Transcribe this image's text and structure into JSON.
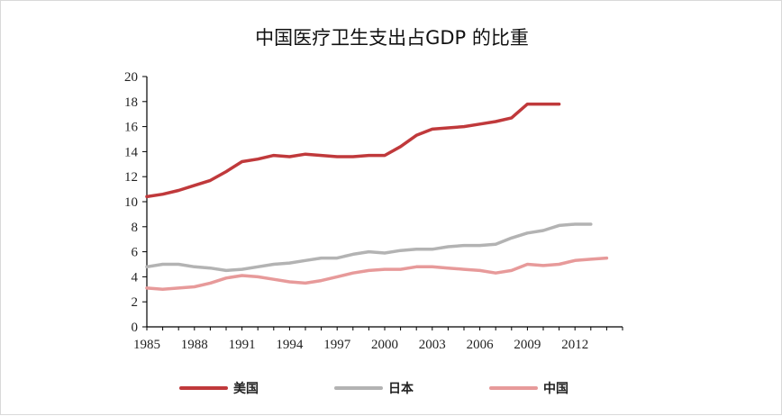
{
  "chart_data": {
    "type": "line",
    "title": "中国医疗卫生支出占GDP 的比重",
    "xlabel": "",
    "ylabel": "",
    "xlim": [
      1985,
      2015
    ],
    "ylim": [
      0,
      20
    ],
    "x_ticks": [
      1985,
      1988,
      1991,
      1994,
      1997,
      2000,
      2003,
      2006,
      2009,
      2012
    ],
    "y_ticks": [
      0,
      2,
      4,
      6,
      8,
      10,
      12,
      14,
      16,
      18,
      20
    ],
    "grid": false,
    "legend_position": "bottom",
    "series": [
      {
        "name": "美国",
        "color": "#c0393b",
        "x": [
          1985,
          1986,
          1987,
          1988,
          1989,
          1990,
          1991,
          1992,
          1993,
          1994,
          1995,
          1996,
          1997,
          1998,
          1999,
          2000,
          2001,
          2002,
          2003,
          2004,
          2005,
          2006,
          2007,
          2008,
          2009,
          2010,
          2011
        ],
        "values": [
          10.4,
          10.6,
          10.9,
          11.3,
          11.7,
          12.4,
          13.2,
          13.4,
          13.7,
          13.6,
          13.8,
          13.7,
          13.6,
          13.6,
          13.7,
          13.7,
          14.4,
          15.3,
          15.8,
          15.9,
          16.0,
          16.2,
          16.4,
          16.7,
          17.8,
          17.8,
          17.8
        ]
      },
      {
        "name": "日本",
        "color": "#b3b3b3",
        "x": [
          1985,
          1986,
          1987,
          1988,
          1989,
          1990,
          1991,
          1992,
          1993,
          1994,
          1995,
          1996,
          1997,
          1998,
          1999,
          2000,
          2001,
          2002,
          2003,
          2004,
          2005,
          2006,
          2007,
          2008,
          2009,
          2010,
          2011,
          2012,
          2013
        ],
        "values": [
          4.8,
          5.0,
          5.0,
          4.8,
          4.7,
          4.5,
          4.6,
          4.8,
          5.0,
          5.1,
          5.3,
          5.5,
          5.5,
          5.8,
          6.0,
          5.9,
          6.1,
          6.2,
          6.2,
          6.4,
          6.5,
          6.5,
          6.6,
          7.1,
          7.5,
          7.7,
          8.1,
          8.2,
          8.2
        ]
      },
      {
        "name": "中国",
        "color": "#e79a9a",
        "x": [
          1985,
          1986,
          1987,
          1988,
          1989,
          1990,
          1991,
          1992,
          1993,
          1994,
          1995,
          1996,
          1997,
          1998,
          1999,
          2000,
          2001,
          2002,
          2003,
          2004,
          2005,
          2006,
          2007,
          2008,
          2009,
          2010,
          2011,
          2012,
          2013,
          2014
        ],
        "values": [
          3.1,
          3.0,
          3.1,
          3.2,
          3.5,
          3.9,
          4.1,
          4.0,
          3.8,
          3.6,
          3.5,
          3.7,
          4.0,
          4.3,
          4.5,
          4.6,
          4.6,
          4.8,
          4.8,
          4.7,
          4.6,
          4.5,
          4.3,
          4.5,
          5.0,
          4.9,
          5.0,
          5.3,
          5.4,
          5.5
        ]
      }
    ]
  }
}
